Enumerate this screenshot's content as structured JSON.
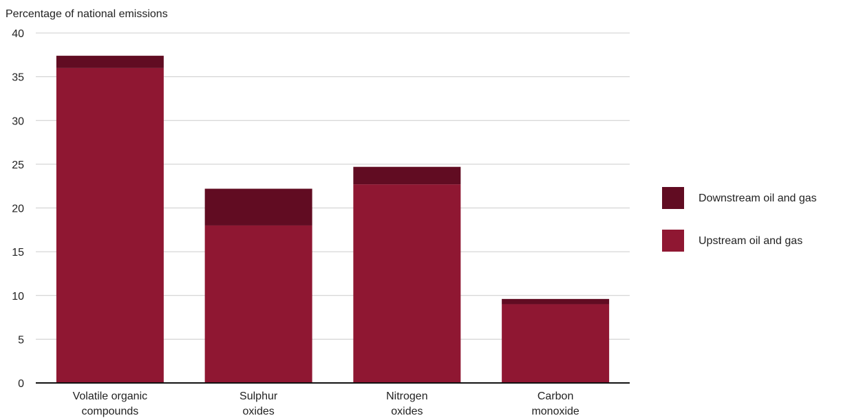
{
  "chart_data": {
    "type": "bar",
    "stacked": true,
    "ylabel": "Percentage of national emissions",
    "xlabel": "",
    "ylim": [
      0,
      40
    ],
    "yticks": [
      0,
      5,
      10,
      15,
      20,
      25,
      30,
      35,
      40
    ],
    "grid": true,
    "legend_position": "right",
    "categories": [
      [
        "Volatile organic",
        "compounds"
      ],
      [
        "Sulphur",
        "oxides"
      ],
      [
        "Nitrogen",
        "oxides"
      ],
      [
        "Carbon",
        "monoxide"
      ]
    ],
    "series": [
      {
        "name": "Upstream oil and gas",
        "color": "#8f1732",
        "values": [
          36,
          18,
          22.7,
          9
        ]
      },
      {
        "name": "Downstream oil and gas",
        "color": "#610c22",
        "values": [
          1.4,
          4.2,
          2,
          0.6
        ]
      }
    ],
    "legend_order": [
      "Downstream oil and gas",
      "Upstream oil and gas"
    ]
  }
}
